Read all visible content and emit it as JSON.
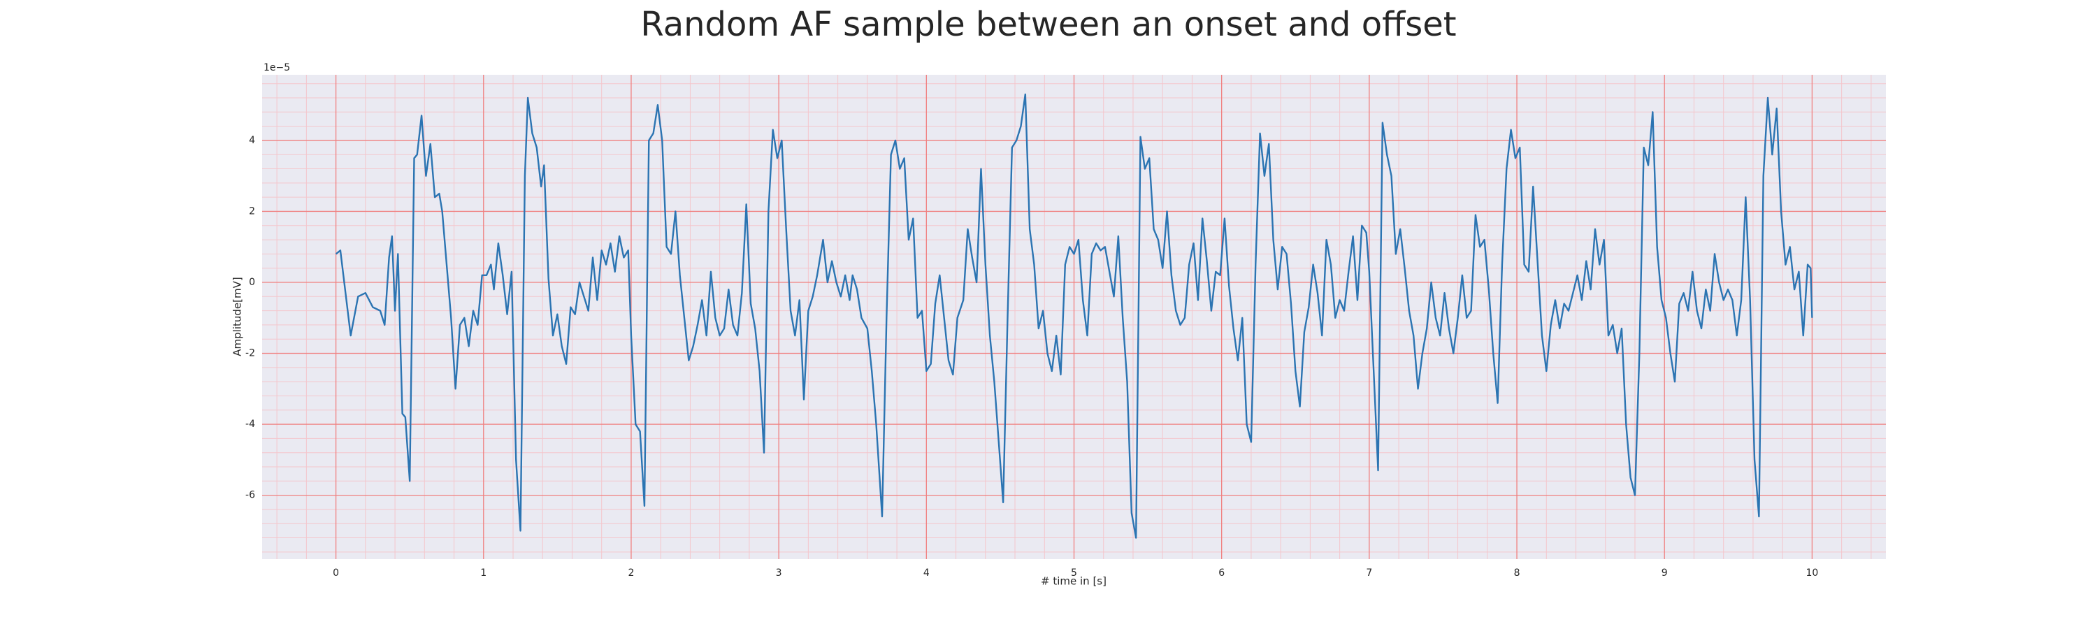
{
  "chart_data": {
    "type": "line",
    "title": "Random AF sample between an onset and offset",
    "xlabel": "# time in [s]",
    "ylabel": "Amplitude[mV]",
    "offset_label": "1e−5",
    "xlim": [
      -0.5,
      10.5
    ],
    "ylim": [
      -7.8,
      5.85
    ],
    "xticks": [
      0,
      1,
      2,
      3,
      4,
      5,
      6,
      7,
      8,
      9,
      10
    ],
    "yticks": [
      -6,
      -4,
      -2,
      0,
      2,
      4
    ],
    "grid": true,
    "minor_grid": true,
    "background": "#eaeaf2",
    "grid_color": "#f08080",
    "minor_grid_color": "#f4c6cc",
    "x": [
      0,
      0.03,
      0.1,
      0.15,
      0.2,
      0.25,
      0.3,
      0.33,
      0.36,
      0.38,
      0.4,
      0.42,
      0.45,
      0.47,
      0.5,
      0.53,
      0.55,
      0.58,
      0.61,
      0.64,
      0.67,
      0.7,
      0.72,
      0.75,
      0.78,
      0.81,
      0.84,
      0.87,
      0.9,
      0.93,
      0.96,
      0.99,
      1.02,
      1.05,
      1.07,
      1.1,
      1.13,
      1.16,
      1.19,
      1.22,
      1.25,
      1.28,
      1.3,
      1.33,
      1.36,
      1.39,
      1.41,
      1.44,
      1.47,
      1.5,
      1.53,
      1.56,
      1.59,
      1.62,
      1.65,
      1.68,
      1.71,
      1.74,
      1.77,
      1.8,
      1.83,
      1.86,
      1.89,
      1.92,
      1.95,
      1.98,
      2.0,
      2.03,
      2.06,
      2.09,
      2.12,
      2.15,
      2.18,
      2.21,
      2.24,
      2.27,
      2.3,
      2.33,
      2.36,
      2.39,
      2.42,
      2.45,
      2.48,
      2.51,
      2.54,
      2.57,
      2.6,
      2.63,
      2.66,
      2.69,
      2.72,
      2.75,
      2.78,
      2.81,
      2.84,
      2.87,
      2.9,
      2.93,
      2.96,
      2.99,
      3.02,
      3.05,
      3.08,
      3.11,
      3.14,
      3.17,
      3.2,
      3.23,
      3.26,
      3.3,
      3.33,
      3.36,
      3.39,
      3.42,
      3.45,
      3.48,
      3.5,
      3.53,
      3.56,
      3.6,
      3.63,
      3.66,
      3.7,
      3.73,
      3.76,
      3.79,
      3.82,
      3.85,
      3.88,
      3.91,
      3.94,
      3.97,
      4.0,
      4.03,
      4.06,
      4.09,
      4.12,
      4.15,
      4.18,
      4.21,
      4.25,
      4.28,
      4.31,
      4.34,
      4.37,
      4.4,
      4.43,
      4.46,
      4.49,
      4.52,
      4.55,
      4.58,
      4.61,
      4.64,
      4.67,
      4.7,
      4.73,
      4.76,
      4.79,
      4.82,
      4.85,
      4.88,
      4.91,
      4.94,
      4.97,
      5.0,
      5.03,
      5.06,
      5.09,
      5.12,
      5.15,
      5.18,
      5.21,
      5.24,
      5.27,
      5.3,
      5.33,
      5.36,
      5.39,
      5.42,
      5.45,
      5.48,
      5.51,
      5.54,
      5.57,
      5.6,
      5.63,
      5.66,
      5.69,
      5.72,
      5.75,
      5.78,
      5.81,
      5.84,
      5.87,
      5.9,
      5.93,
      5.96,
      5.99,
      6.02,
      6.05,
      6.08,
      6.11,
      6.14,
      6.17,
      6.2,
      6.23,
      6.26,
      6.29,
      6.32,
      6.35,
      6.38,
      6.41,
      6.44,
      6.47,
      6.5,
      6.53,
      6.56,
      6.59,
      6.62,
      6.65,
      6.68,
      6.71,
      6.74,
      6.77,
      6.8,
      6.83,
      6.86,
      6.89,
      6.92,
      6.95,
      6.98,
      7.0,
      7.03,
      7.06,
      7.09,
      7.12,
      7.15,
      7.18,
      7.21,
      7.24,
      7.27,
      7.3,
      7.33,
      7.36,
      7.39,
      7.42,
      7.45,
      7.48,
      7.51,
      7.54,
      7.57,
      7.6,
      7.63,
      7.66,
      7.69,
      7.72,
      7.75,
      7.78,
      7.81,
      7.84,
      7.87,
      7.9,
      7.93,
      7.96,
      7.99,
      8.02,
      8.05,
      8.08,
      8.11,
      8.14,
      8.17,
      8.2,
      8.23,
      8.26,
      8.29,
      8.32,
      8.35,
      8.38,
      8.41,
      8.44,
      8.47,
      8.5,
      8.53,
      8.56,
      8.59,
      8.62,
      8.65,
      8.68,
      8.71,
      8.74,
      8.77,
      8.8,
      8.83,
      8.86,
      8.89,
      8.92,
      8.95,
      8.98,
      9.01,
      9.04,
      9.07,
      9.1,
      9.13,
      9.16,
      9.19,
      9.22,
      9.25,
      9.28,
      9.31,
      9.34,
      9.37,
      9.4,
      9.43,
      9.46,
      9.49,
      9.52,
      9.55,
      9.58,
      9.61,
      9.64,
      9.67,
      9.7,
      9.73,
      9.76,
      9.79,
      9.82,
      9.85,
      9.88,
      9.91,
      9.94,
      9.97,
      9.99,
      10.0
    ],
    "series": [
      {
        "color": "#2b74b2",
        "values": [
          0.8,
          0.9,
          -1.5,
          -0.4,
          -0.3,
          -0.7,
          -0.8,
          -1.2,
          0.7,
          1.3,
          -0.8,
          0.8,
          -3.7,
          -3.8,
          -5.6,
          3.5,
          3.6,
          4.7,
          3.0,
          3.9,
          2.4,
          2.5,
          2.0,
          0.5,
          -1.0,
          -3.0,
          -1.2,
          -1.0,
          -1.8,
          -0.8,
          -1.2,
          0.2,
          0.2,
          0.5,
          -0.2,
          1.1,
          0.2,
          -0.9,
          0.3,
          -5.0,
          -7.0,
          3.0,
          5.2,
          4.2,
          3.8,
          2.7,
          3.3,
          0.1,
          -1.5,
          -0.9,
          -1.8,
          -2.3,
          -0.7,
          -0.9,
          0.0,
          -0.4,
          -0.8,
          0.7,
          -0.5,
          0.9,
          0.5,
          1.1,
          0.3,
          1.3,
          0.7,
          0.9,
          -1.5,
          -4.0,
          -4.2,
          -6.3,
          4.0,
          4.2,
          5.0,
          4.0,
          1.0,
          0.8,
          2.0,
          0.2,
          -1.0,
          -2.2,
          -1.8,
          -1.2,
          -0.5,
          -1.5,
          0.3,
          -1.0,
          -1.5,
          -1.3,
          -0.2,
          -1.2,
          -1.5,
          -0.3,
          2.2,
          -0.6,
          -1.3,
          -2.5,
          -4.8,
          2.0,
          4.3,
          3.5,
          4.0,
          1.5,
          -0.8,
          -1.5,
          -0.5,
          -3.3,
          -0.8,
          -0.4,
          0.2,
          1.2,
          0.0,
          0.6,
          0.0,
          -0.4,
          0.2,
          -0.5,
          0.2,
          -0.2,
          -1.0,
          -1.3,
          -2.5,
          -4.0,
          -6.6,
          -1.0,
          3.6,
          4.0,
          3.2,
          3.5,
          1.2,
          1.8,
          -1.0,
          -0.8,
          -2.5,
          -2.3,
          -0.6,
          0.2,
          -1.0,
          -2.2,
          -2.6,
          -1.0,
          -0.5,
          1.5,
          0.7,
          0.0,
          3.2,
          0.5,
          -1.5,
          -2.8,
          -4.5,
          -6.2,
          -1.0,
          3.8,
          4.0,
          4.4,
          5.3,
          1.5,
          0.5,
          -1.3,
          -0.8,
          -2.0,
          -2.5,
          -1.5,
          -2.6,
          0.5,
          1.0,
          0.8,
          1.2,
          -0.5,
          -1.5,
          0.8,
          1.1,
          0.9,
          1.0,
          0.3,
          -0.4,
          1.3,
          -1.0,
          -2.8,
          -6.5,
          -7.2,
          4.1,
          3.2,
          3.5,
          1.5,
          1.2,
          0.4,
          2.0,
          0.2,
          -0.8,
          -1.2,
          -1.0,
          0.5,
          1.1,
          -0.5,
          1.8,
          0.6,
          -0.8,
          0.3,
          0.2,
          1.8,
          -0.1,
          -1.3,
          -2.2,
          -1.0,
          -4.0,
          -4.5,
          0.5,
          4.2,
          3.0,
          3.9,
          1.2,
          -0.2,
          1.0,
          0.8,
          -0.6,
          -2.5,
          -3.5,
          -1.4,
          -0.7,
          0.5,
          -0.3,
          -1.5,
          1.2,
          0.5,
          -1.0,
          -0.5,
          -0.8,
          0.3,
          1.3,
          -0.5,
          1.6,
          1.4,
          0.3,
          -2.5,
          -5.3,
          4.5,
          3.6,
          3.0,
          0.8,
          1.5,
          0.4,
          -0.8,
          -1.5,
          -3.0,
          -2.0,
          -1.3,
          0.0,
          -1.0,
          -1.5,
          -0.3,
          -1.3,
          -2.0,
          -1.0,
          0.2,
          -1.0,
          -0.8,
          1.9,
          1.0,
          1.2,
          -0.2,
          -2.0,
          -3.4,
          0.5,
          3.2,
          4.3,
          3.5,
          3.8,
          0.5,
          0.3,
          2.7,
          0.6,
          -1.5,
          -2.5,
          -1.2,
          -0.5,
          -1.3,
          -0.6,
          -0.8,
          -0.3,
          0.2,
          -0.5,
          0.6,
          -0.2,
          1.5,
          0.5,
          1.2,
          -1.5,
          -1.2,
          -2.0,
          -1.3,
          -4.0,
          -5.5,
          -6.0,
          -2.0,
          3.8,
          3.3,
          4.8,
          1.0,
          -0.5,
          -1.0,
          -2.0,
          -2.8,
          -0.6,
          -0.3,
          -0.8,
          0.3,
          -0.8,
          -1.3,
          -0.2,
          -0.8,
          0.8,
          0.0,
          -0.5,
          -0.2,
          -0.5,
          -1.5,
          -0.5,
          2.4,
          -0.5,
          -5.0,
          -6.6,
          3.0,
          5.2,
          3.6,
          4.9,
          2.0,
          0.5,
          1.0,
          -0.2,
          0.3,
          -1.5,
          0.5,
          0.4,
          -1.0
        ]
      }
    ]
  }
}
